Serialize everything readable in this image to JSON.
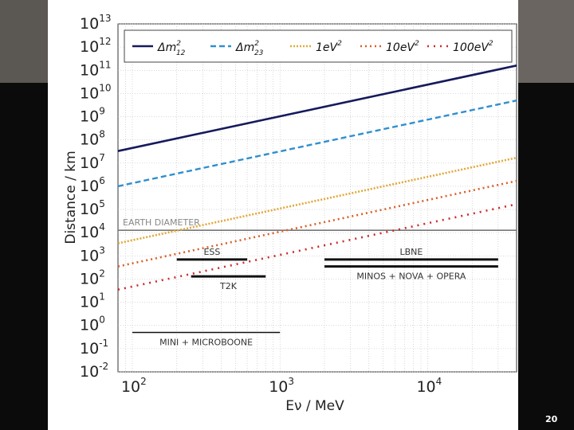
{
  "slide": {
    "page_number": "20"
  },
  "chart_data": {
    "type": "line",
    "title": "",
    "xlabel": "Eν / MeV",
    "ylabel": "Distance / km",
    "x_scale": "log",
    "y_scale": "log",
    "xlim": [
      80,
      40000
    ],
    "ylim": [
      0.01,
      10000000000000.0
    ],
    "x_ticks": [
      {
        "v": 100,
        "base": "10",
        "exp": "2"
      },
      {
        "v": 1000,
        "base": "10",
        "exp": "3"
      },
      {
        "v": 10000,
        "base": "10",
        "exp": "4"
      }
    ],
    "y_ticks": [
      {
        "v": 10000000000000.0,
        "exp": "13"
      },
      {
        "v": 1000000000000.0,
        "exp": "12"
      },
      {
        "v": 100000000000.0,
        "exp": "11"
      },
      {
        "v": 10000000000.0,
        "exp": "10"
      },
      {
        "v": 1000000000.0,
        "exp": "9"
      },
      {
        "v": 100000000.0,
        "exp": "8"
      },
      {
        "v": 10000000.0,
        "exp": "7"
      },
      {
        "v": 1000000.0,
        "exp": "6"
      },
      {
        "v": 100000.0,
        "exp": "5"
      },
      {
        "v": 10000.0,
        "exp": "4"
      },
      {
        "v": 1000.0,
        "exp": "3"
      },
      {
        "v": 100.0,
        "exp": "2"
      },
      {
        "v": 10.0,
        "exp": "1"
      },
      {
        "v": 1.0,
        "exp": "0"
      },
      {
        "v": 0.1,
        "exp": "-1"
      },
      {
        "v": 0.01,
        "exp": "-2"
      }
    ],
    "series": [
      {
        "name": "Δm²₁₂",
        "sym": "Δm",
        "sup": "2",
        "sub": "12",
        "color": "#161a5c",
        "dash": "",
        "width": 2.6,
        "x": [
          80,
          40000
        ],
        "y": [
          33000000.0,
          160000000000.0
        ]
      },
      {
        "name": "Δm²₂₃",
        "sym": "Δm",
        "sup": "2",
        "sub": "23",
        "color": "#2f8fcf",
        "dash": "7,4",
        "width": 2.4,
        "x": [
          80,
          40000
        ],
        "y": [
          1000000.0,
          5000000000.0
        ]
      },
      {
        "name": "1eV²",
        "sym": "1eV",
        "sup": "2",
        "sub": "",
        "color": "#e0a93a",
        "dash": "2,2",
        "width": 2.6,
        "x": [
          80,
          40000
        ],
        "y": [
          3500.0,
          17000000.0
        ]
      },
      {
        "name": "10eV²",
        "sym": "10eV",
        "sup": "2",
        "sub": "",
        "color": "#d6612a",
        "dash": "2,4",
        "width": 2.6,
        "x": [
          80,
          40000
        ],
        "y": [
          350.0,
          1700000.0
        ]
      },
      {
        "name": "100eV²",
        "sym": "100eV",
        "sup": "2",
        "sub": "",
        "color": "#cc2a2a",
        "dash": "2,6",
        "width": 2.6,
        "x": [
          80,
          40000
        ],
        "y": [
          35.0,
          170000.0
        ]
      }
    ],
    "reference_lines": [
      {
        "label": "EARTH DIAMETER",
        "y": 12700
      }
    ],
    "experiments": [
      {
        "label": "ESS",
        "x": [
          200,
          600
        ],
        "y": 700,
        "label_pos": "above"
      },
      {
        "label": "T2K",
        "x": [
          250,
          800
        ],
        "y": 130,
        "label_pos": "below"
      },
      {
        "label": "LBNE",
        "x": [
          2000,
          30000
        ],
        "y": 700,
        "label_pos": "above"
      },
      {
        "label": "MINOS + NOVA + OPERA",
        "x": [
          2000,
          30000
        ],
        "y": 350,
        "label_pos": "below"
      },
      {
        "label": "MINI + MICROBOONE",
        "x": [
          100,
          1000
        ],
        "y": 0.5,
        "label_pos": "below"
      }
    ],
    "legend_position": "top"
  }
}
